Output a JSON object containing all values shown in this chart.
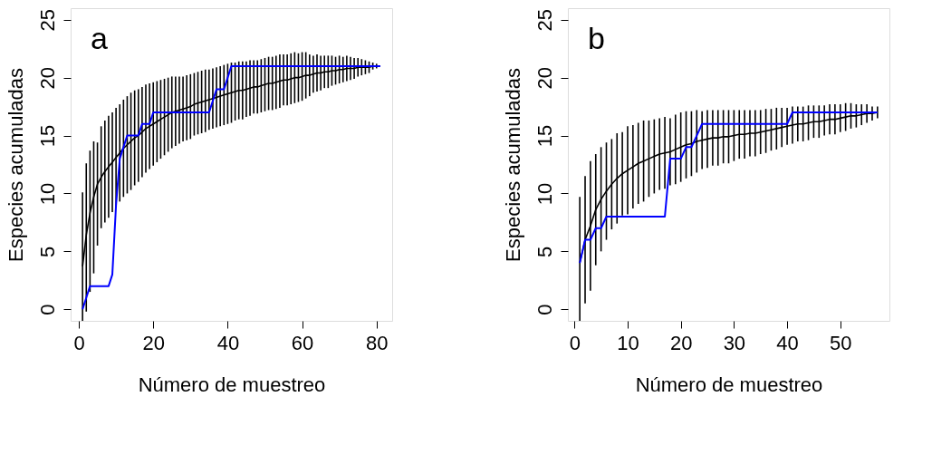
{
  "chart_data": [
    {
      "type": "line",
      "annotations": [
        "a"
      ],
      "xlabel": "Número de muestreo",
      "ylabel": "Especies acumuladas",
      "xlim": [
        -2.2,
        84.2
      ],
      "ylim": [
        -1,
        26
      ],
      "xticks": [
        0,
        20,
        40,
        60,
        80
      ],
      "yticks": [
        0,
        5,
        10,
        15,
        20,
        25
      ],
      "grid": false,
      "marker": "none",
      "line_style": "solid",
      "x": [
        1,
        2,
        3,
        4,
        5,
        6,
        7,
        8,
        9,
        10,
        11,
        12,
        13,
        14,
        15,
        16,
        17,
        18,
        19,
        20,
        21,
        22,
        23,
        24,
        25,
        26,
        27,
        28,
        29,
        30,
        31,
        32,
        33,
        34,
        35,
        36,
        37,
        38,
        39,
        40,
        41,
        42,
        43,
        44,
        45,
        46,
        47,
        48,
        49,
        50,
        51,
        52,
        53,
        54,
        55,
        56,
        57,
        58,
        59,
        60,
        61,
        62,
        63,
        64,
        65,
        66,
        67,
        68,
        69,
        70,
        71,
        72,
        73,
        74,
        75,
        76,
        77,
        78,
        79,
        80,
        81
      ],
      "series": [
        {
          "color": "#000000",
          "values": [
            3.7,
            6.4,
            8.3,
            9.7,
            10.8,
            11.4,
            11.9,
            12.3,
            12.7,
            13.1,
            13.5,
            13.9,
            14.2,
            14.5,
            14.8,
            15.0,
            15.3,
            15.6,
            15.8,
            16.0,
            16.2,
            16.4,
            16.6,
            16.8,
            17.0,
            17.1,
            17.2,
            17.3,
            17.4,
            17.5,
            17.7,
            17.8,
            17.9,
            18.0,
            18.1,
            18.2,
            18.3,
            18.4,
            18.5,
            18.6,
            18.7,
            18.8,
            18.9,
            18.9,
            19.0,
            19.1,
            19.2,
            19.2,
            19.3,
            19.4,
            19.5,
            19.5,
            19.6,
            19.7,
            19.8,
            19.8,
            19.9,
            20.0,
            20.0,
            20.1,
            20.2,
            20.2,
            20.3,
            20.4,
            20.4,
            20.5,
            20.5,
            20.6,
            20.6,
            20.7,
            20.7,
            20.8,
            20.8,
            20.8,
            20.9,
            20.9,
            20.9,
            20.9,
            21.0,
            21.0,
            21.0
          ],
          "errors": [
            [
              -1,
              10.1
            ],
            [
              -0.2,
              12.6
            ],
            [
              1.5,
              13.7
            ],
            [
              3.1,
              14.5
            ],
            [
              5.5,
              14.4
            ],
            4.4,
            4.4,
            4.4,
            4.3,
            4.3,
            4.2,
            4.2,
            4.2,
            4.2,
            4.1,
            4.0,
            3.9,
            3.8,
            3.7,
            3.6,
            3.5,
            3.4,
            3.3,
            3.2,
            3.1,
            3.0,
            2.9,
            2.8,
            2.8,
            2.8,
            2.7,
            2.7,
            2.7,
            2.7,
            2.6,
            2.6,
            2.6,
            2.6,
            2.6,
            2.6,
            2.6,
            2.5,
            2.5,
            2.5,
            2.4,
            2.4,
            2.3,
            2.3,
            2.3,
            2.3,
            2.3,
            2.3,
            2.3,
            2.3,
            2.2,
            2.2,
            2.2,
            2.2,
            2.1,
            2.1,
            2.0,
            1.8,
            1.6,
            1.6,
            1.5,
            1.4,
            1.4,
            1.3,
            1.2,
            1.2,
            1.1,
            1.1,
            1.0,
            0.9,
            0.8,
            0.7,
            0.6,
            0.5,
            0.3,
            0.2,
            0
          ]
        },
        {
          "color": "#0000ff",
          "values": [
            0,
            1,
            2,
            2,
            2,
            2,
            2,
            2,
            3,
            9,
            13,
            14,
            15,
            15,
            15,
            15,
            16,
            16,
            16,
            17,
            17,
            17,
            17,
            17,
            17,
            17,
            17,
            17,
            17,
            17,
            17,
            17,
            17,
            17,
            17,
            18,
            19,
            19,
            19,
            20,
            21,
            21,
            21,
            21,
            21,
            21,
            21,
            21,
            21,
            21,
            21,
            21,
            21,
            21,
            21,
            21,
            21,
            21,
            21,
            21,
            21,
            21,
            21,
            21,
            21,
            21,
            21,
            21,
            21,
            21,
            21,
            21,
            21,
            21,
            21,
            21,
            21,
            21,
            21,
            21,
            21
          ]
        }
      ]
    },
    {
      "type": "line",
      "annotations": [
        "b"
      ],
      "xlabel": "Número de muestreo",
      "ylabel": "Especies acumuladas",
      "xlim": [
        -1.24,
        59.24
      ],
      "ylim": [
        -1,
        26
      ],
      "xticks": [
        0,
        10,
        20,
        30,
        40,
        50
      ],
      "yticks": [
        0,
        5,
        10,
        15,
        20,
        25
      ],
      "grid": false,
      "marker": "none",
      "line_style": "solid",
      "x": [
        1,
        2,
        3,
        4,
        5,
        6,
        7,
        8,
        9,
        10,
        11,
        12,
        13,
        14,
        15,
        16,
        17,
        18,
        19,
        20,
        21,
        22,
        23,
        24,
        25,
        26,
        27,
        28,
        29,
        30,
        31,
        32,
        33,
        34,
        35,
        36,
        37,
        38,
        39,
        40,
        41,
        42,
        43,
        44,
        45,
        46,
        47,
        48,
        49,
        50,
        51,
        52,
        53,
        54,
        55,
        56,
        57
      ],
      "series": [
        {
          "color": "#000000",
          "values": [
            4.0,
            6.0,
            7.2,
            8.6,
            9.5,
            10.2,
            10.8,
            11.3,
            11.7,
            12.0,
            12.3,
            12.6,
            12.8,
            13.0,
            13.2,
            13.4,
            13.5,
            13.6,
            13.8,
            14.0,
            14.2,
            14.3,
            14.5,
            14.6,
            14.7,
            14.8,
            14.8,
            14.9,
            14.9,
            15.0,
            15.1,
            15.1,
            15.2,
            15.2,
            15.3,
            15.4,
            15.5,
            15.6,
            15.7,
            15.8,
            15.9,
            16.0,
            16.0,
            16.1,
            16.2,
            16.2,
            16.3,
            16.4,
            16.4,
            16.5,
            16.6,
            16.7,
            16.7,
            16.8,
            16.9,
            16.9,
            17.0
          ],
          "errors": [
            [
              -1,
              9.7
            ],
            5.5,
            5.6,
            4.8,
            4.5,
            4.2,
            3.9,
            3.9,
            3.6,
            3.8,
            3.6,
            3.5,
            3.5,
            3.3,
            3.2,
            3.1,
            3.1,
            2.9,
            3.0,
            3.0,
            2.9,
            2.8,
            2.7,
            2.5,
            2.5,
            2.4,
            2.4,
            2.3,
            2.3,
            2.2,
            2.1,
            2.1,
            2.0,
            2.0,
            1.9,
            1.9,
            1.8,
            1.8,
            1.7,
            1.6,
            1.6,
            1.5,
            1.5,
            1.5,
            1.4,
            1.4,
            1.3,
            1.3,
            1.3,
            1.2,
            1.2,
            1.1,
            1.0,
            0.9,
            0.8,
            0.6,
            0.5
          ]
        },
        {
          "color": "#0000ff",
          "values": [
            4,
            6,
            6,
            7,
            7,
            8,
            8,
            8,
            8,
            8,
            8,
            8,
            8,
            8,
            8,
            8,
            8,
            13,
            13,
            13,
            14,
            14,
            15,
            16,
            16,
            16,
            16,
            16,
            16,
            16,
            16,
            16,
            16,
            16,
            16,
            16,
            16,
            16,
            16,
            16,
            17,
            17,
            17,
            17,
            17,
            17,
            17,
            17,
            17,
            17,
            17,
            17,
            17,
            17,
            17,
            17,
            17
          ]
        }
      ]
    }
  ]
}
